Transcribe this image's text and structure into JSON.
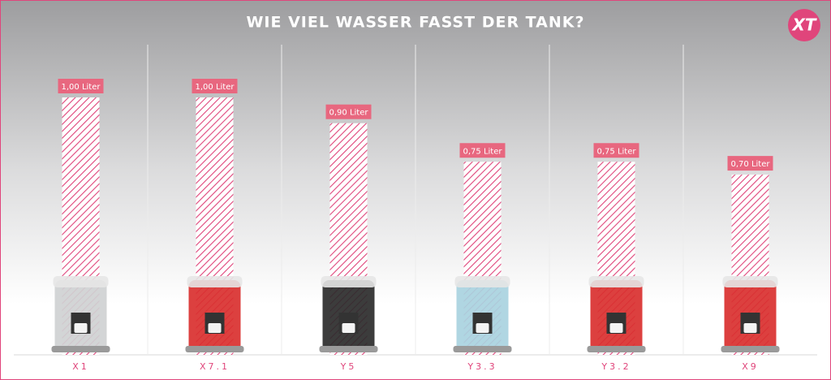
{
  "chart_data": {
    "type": "bar",
    "title": "WIE VIEL WASSER FASST DER TANK?",
    "logo": "XT",
    "categories": [
      "X1",
      "X7.1",
      "Y5",
      "Y3.3",
      "Y3.2",
      "X9"
    ],
    "values": [
      1.0,
      1.0,
      0.9,
      0.75,
      0.75,
      0.7
    ],
    "value_labels": [
      "1,00 Liter",
      "1,00 Liter",
      "0,90 Liter",
      "0,75 Liter",
      "0,75 Liter",
      "0,70 Liter"
    ],
    "color": "#e0457b",
    "label_color": "#e8677f"
  }
}
